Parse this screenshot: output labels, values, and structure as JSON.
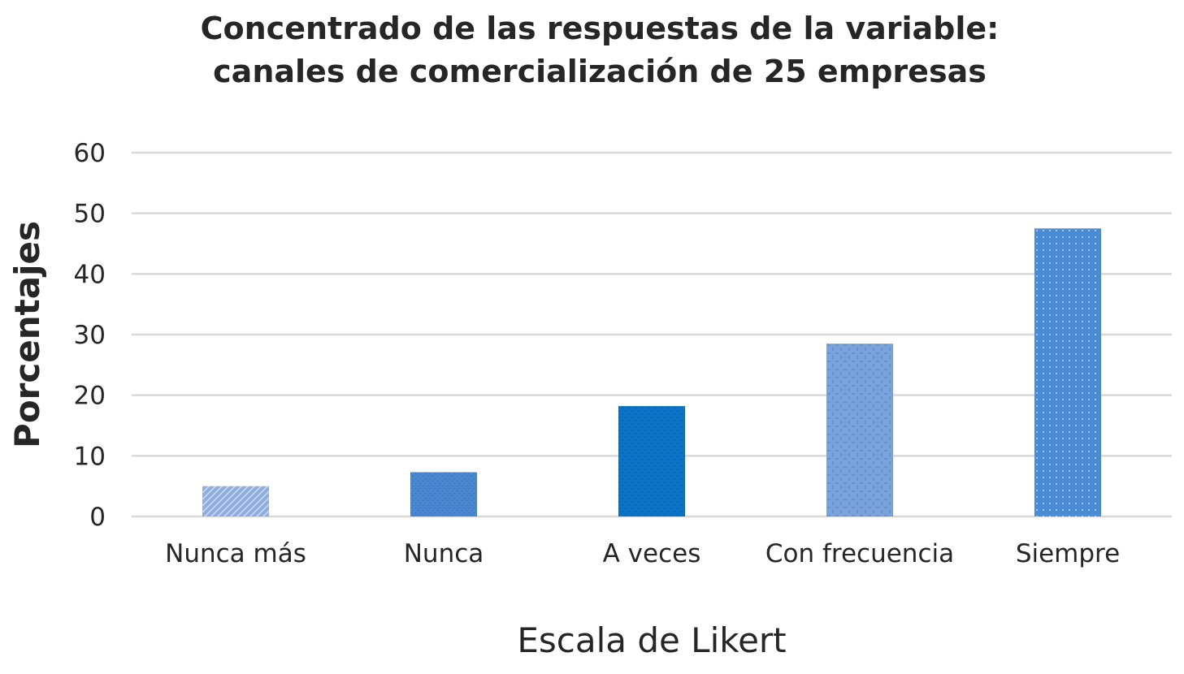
{
  "chart_data": {
    "type": "bar",
    "title": [
      "Concentrado de las respuestas de la variable:",
      "canales de comercialización de 25 empresas"
    ],
    "xlabel": "Escala de Likert",
    "ylabel": "Porcentajes",
    "categories": [
      "Nunca más",
      "Nunca",
      "A veces",
      "Con frecuencia",
      "Siempre"
    ],
    "values": [
      5,
      7.3,
      18.2,
      28.5,
      47.5
    ],
    "ylim": [
      0,
      60
    ],
    "yticks": [
      0,
      10,
      20,
      30,
      40,
      50,
      60
    ],
    "grid": true,
    "bar_styles": [
      {
        "fill": "#8eaee0",
        "pattern": "diagonal-lines"
      },
      {
        "fill": "#4a87d0",
        "pattern": "fine-dots"
      },
      {
        "fill": "#0b73c6",
        "pattern": "sparse-dots"
      },
      {
        "fill": "#7aa3dc",
        "pattern": "diamond-dots"
      },
      {
        "fill": "#4a8bd6",
        "pattern": "grid-dots"
      }
    ]
  }
}
